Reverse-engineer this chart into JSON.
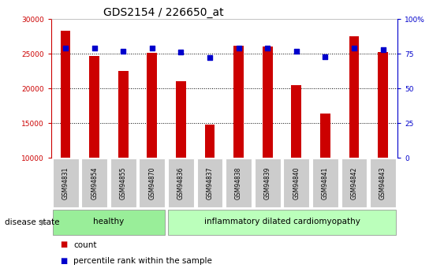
{
  "title": "GDS2154 / 226650_at",
  "categories": [
    "GSM94831",
    "GSM94854",
    "GSM94855",
    "GSM94870",
    "GSM94836",
    "GSM94837",
    "GSM94838",
    "GSM94839",
    "GSM94840",
    "GSM94841",
    "GSM94842",
    "GSM94843"
  ],
  "counts": [
    28300,
    24700,
    22500,
    25100,
    21000,
    14800,
    26100,
    26000,
    20500,
    16400,
    27500,
    25200
  ],
  "percentiles": [
    79,
    79,
    77,
    79,
    76,
    72,
    79,
    79,
    77,
    73,
    79,
    78
  ],
  "ylim_left": [
    10000,
    30000
  ],
  "ylim_right": [
    0,
    100
  ],
  "yticks_left": [
    10000,
    15000,
    20000,
    25000,
    30000
  ],
  "yticks_right": [
    0,
    25,
    50,
    75,
    100
  ],
  "bar_color": "#cc0000",
  "scatter_color": "#0000cc",
  "bar_bottom": 10000,
  "healthy_label": "healthy",
  "idc_label": "inflammatory dilated cardiomyopathy",
  "disease_state_label": "disease state",
  "legend_count": "count",
  "legend_percentile": "percentile rank within the sample",
  "healthy_color": "#99ee99",
  "idc_color": "#bbffbb",
  "group_box_color": "#cccccc",
  "left_axis_color": "#cc0000",
  "right_axis_color": "#0000cc",
  "title_fontsize": 10,
  "tick_fontsize": 6.5,
  "label_fontsize": 7.5
}
